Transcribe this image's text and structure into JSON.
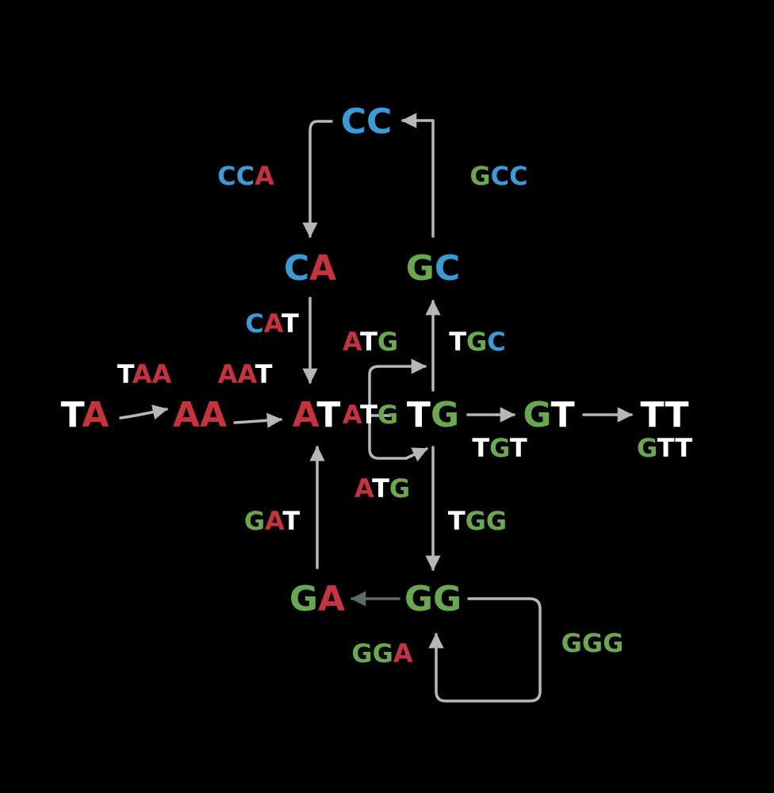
{
  "colors": {
    "A": "#c8313e",
    "C": "#3a9bd5",
    "G": "#6aa84f",
    "T": "#ffffff",
    "edge": "#b7b7b7",
    "edge_dark": "#5a6b66",
    "background": "#000000"
  },
  "nodes": {
    "CC": "CC",
    "CA": "CA",
    "GC": "GC",
    "TA": "TA",
    "AA": "AA",
    "AT": "AT",
    "TG": "TG",
    "GT": "GT",
    "TT": "TT",
    "GA": "GA",
    "GG": "GG"
  },
  "edge_labels": {
    "CCA": "CCA",
    "GCC": "GCC",
    "CAT": "CAT",
    "ATG_top": "ATG",
    "TGC": "TGC",
    "TAA": "TAA",
    "AAT": "AAT",
    "ATG_mid": "ATG",
    "TGT": "TGT",
    "GTT": "GTT",
    "ATG_bottom": "ATG",
    "TGG": "TGG",
    "GAT": "GAT",
    "GGA": "GGA",
    "GGG": "GGG"
  }
}
